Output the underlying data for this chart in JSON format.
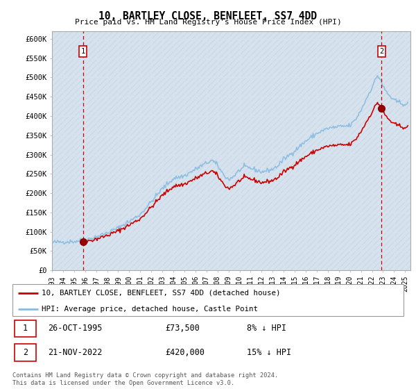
{
  "title": "10, BARTLEY CLOSE, BENFLEET, SS7 4DD",
  "subtitle": "Price paid vs. HM Land Registry's House Price Index (HPI)",
  "ylabel_ticks": [
    "£0",
    "£50K",
    "£100K",
    "£150K",
    "£200K",
    "£250K",
    "£300K",
    "£350K",
    "£400K",
    "£450K",
    "£500K",
    "£550K",
    "£600K"
  ],
  "ylim": [
    0,
    620000
  ],
  "xlim_start": 1993.0,
  "xlim_end": 2025.5,
  "legend_line1": "10, BARTLEY CLOSE, BENFLEET, SS7 4DD (detached house)",
  "legend_line2": "HPI: Average price, detached house, Castle Point",
  "point1_date": "26-OCT-1995",
  "point1_price": 73500,
  "point1_note": "8% ↓ HPI",
  "point1_year": 1995.8,
  "point2_date": "21-NOV-2022",
  "point2_price": 420000,
  "point2_note": "15% ↓ HPI",
  "point2_year": 2022.87,
  "footer": "Contains HM Land Registry data © Crown copyright and database right 2024.\nThis data is licensed under the Open Government Licence v3.0.",
  "hpi_color": "#88bbe0",
  "price_color": "#cc0000",
  "grid_color": "#c8d8e8",
  "plot_bg": "#dce8f0",
  "hatch_color": "#c0d0e0",
  "border_color": "#aaaaaa"
}
